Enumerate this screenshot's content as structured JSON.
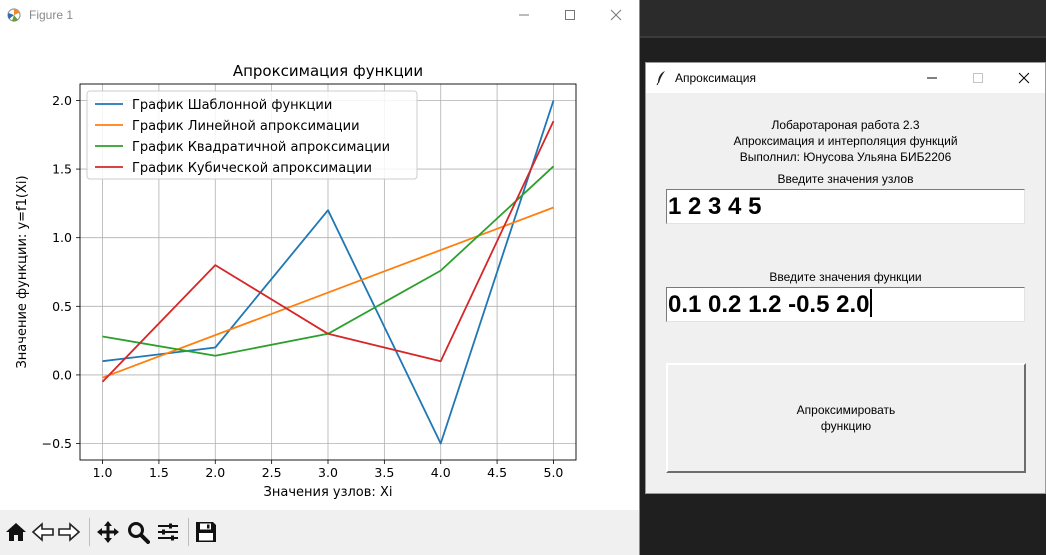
{
  "figure_window": {
    "title": "Figure 1",
    "toolbar": [
      "home-icon",
      "back-icon",
      "forward-icon",
      "pan-icon",
      "zoom-icon",
      "subplots-icon",
      "save-icon"
    ]
  },
  "chart_data": {
    "type": "line",
    "title": "Апроксимация функции",
    "xlabel": "Значения узлов: Xi",
    "ylabel": "Значение функции: y=f1(Xi)",
    "xlim": [
      0.8,
      5.2
    ],
    "ylim": [
      -0.62,
      2.12
    ],
    "xticks": [
      1.0,
      1.5,
      2.0,
      2.5,
      3.0,
      3.5,
      4.0,
      4.5,
      5.0
    ],
    "xtick_labels": [
      "1.0",
      "1.5",
      "2.0",
      "2.5",
      "3.0",
      "3.5",
      "4.0",
      "4.5",
      "5.0"
    ],
    "yticks": [
      -0.5,
      0.0,
      0.5,
      1.0,
      1.5,
      2.0
    ],
    "ytick_labels": [
      "−0.5",
      "0.0",
      "0.5",
      "1.0",
      "1.5",
      "2.0"
    ],
    "grid": true,
    "legend_position": "upper-left",
    "series": [
      {
        "name": "График Шаблонной функции",
        "color": "#1f77b4",
        "x": [
          1,
          2,
          3,
          4,
          5
        ],
        "y": [
          0.1,
          0.2,
          1.2,
          -0.5,
          2.0
        ]
      },
      {
        "name": "График Линейной апроксимации",
        "color": "#ff7f0e",
        "x": [
          1,
          5
        ],
        "y": [
          -0.02,
          1.22
        ]
      },
      {
        "name": "График Квадратичной апроксимации",
        "color": "#2ca02c",
        "x": [
          1,
          2,
          3,
          4,
          5
        ],
        "y": [
          0.28,
          0.14,
          0.3,
          0.76,
          1.52
        ]
      },
      {
        "name": "График Кубической апроксимации",
        "color": "#d62728",
        "x": [
          1,
          2,
          3,
          4,
          5
        ],
        "y": [
          -0.05,
          0.8,
          0.3,
          0.1,
          1.85
        ]
      }
    ]
  },
  "tk_window": {
    "title": "Апроксимация",
    "header_lines": [
      "Лобаротароная работа 2.3",
      "Апроксимация и интерполяция функций",
      "Выполнил: Юнусова Ульяна БИБ2206"
    ],
    "nodes_label": "Введите значения узлов",
    "nodes_value": "1 2 3 4 5",
    "func_label": "Введите значения функции",
    "func_value": "0.1 0.2 1.2 -0.5 2.0",
    "button_label": "Апроксимировать\nфункцию"
  }
}
